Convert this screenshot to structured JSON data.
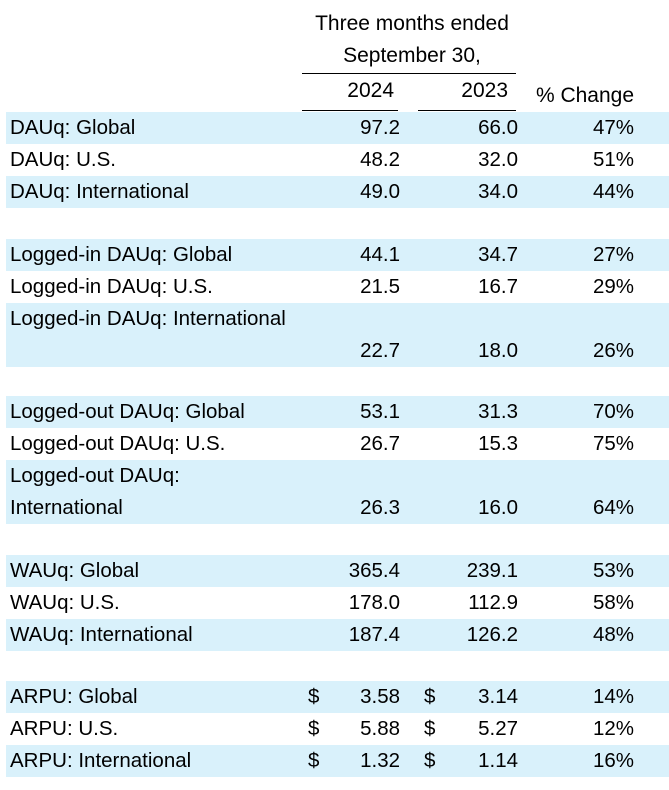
{
  "header": {
    "period_line1": "Three months ended",
    "period_line2": "September 30,",
    "col_2024": "2024",
    "col_2023": "2023",
    "col_change": "% Change"
  },
  "rows": [
    {
      "label": "DAUq: Global",
      "v2024": "97.2",
      "v2023": "66.0",
      "change": "47%"
    },
    {
      "label": "DAUq: U.S.",
      "v2024": "48.2",
      "v2023": "32.0",
      "change": "51%"
    },
    {
      "label": "DAUq: International",
      "v2024": "49.0",
      "v2023": "34.0",
      "change": "44%"
    },
    {
      "label": "Logged-in DAUq: Global",
      "v2024": "44.1",
      "v2023": "34.7",
      "change": "27%"
    },
    {
      "label": "Logged-in DAUq: U.S.",
      "v2024": "21.5",
      "v2023": "16.7",
      "change": "29%"
    },
    {
      "label": "Logged-in DAUq: International",
      "v2024": "22.7",
      "v2023": "18.0",
      "change": "26%"
    },
    {
      "label": "Logged-out DAUq: Global",
      "v2024": "53.1",
      "v2023": "31.3",
      "change": "70%"
    },
    {
      "label": "Logged-out DAUq: U.S.",
      "v2024": "26.7",
      "v2023": "15.3",
      "change": "75%"
    },
    {
      "label": "Logged-out DAUq: International",
      "v2024": "26.3",
      "v2023": "16.0",
      "change": "64%"
    },
    {
      "label": "WAUq: Global",
      "v2024": "365.4",
      "v2023": "239.1",
      "change": "53%"
    },
    {
      "label": "WAUq: U.S.",
      "v2024": "178.0",
      "v2023": "112.9",
      "change": "58%"
    },
    {
      "label": "WAUq: International",
      "v2024": "187.4",
      "v2023": "126.2",
      "change": "48%"
    },
    {
      "label": "ARPU: Global",
      "currency": "$",
      "v2024": "3.58",
      "v2023": "3.14",
      "change": "14%"
    },
    {
      "label": "ARPU: U.S.",
      "currency": "$",
      "v2024": "5.88",
      "v2023": "5.27",
      "change": "12%"
    },
    {
      "label": "ARPU: International",
      "currency": "$",
      "v2024": "1.32",
      "v2023": "1.14",
      "change": "16%"
    }
  ],
  "colors": {
    "row_shade": "#d9f1fb"
  }
}
